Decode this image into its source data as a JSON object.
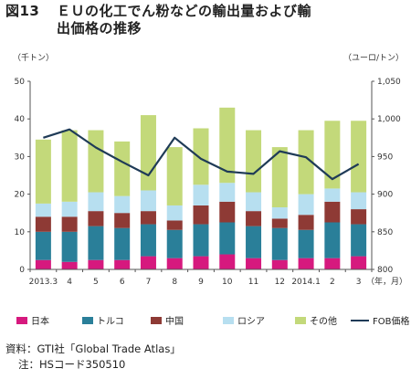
{
  "figure": {
    "number": "図13",
    "title_line1": "ＥＵの化工でん粉などの輸出量および輸",
    "title_line2": "出価格の推移"
  },
  "units": {
    "left": "（千トン）",
    "right": "（ユーロ/トン）",
    "xaxis": "（年，月）"
  },
  "notes": {
    "source": "資料：GTI社「Global Trade Atlas」",
    "note": "注：HSコード350510"
  },
  "colors": {
    "japan": "#d6197e",
    "turkey": "#2a7f99",
    "china": "#8e3a35",
    "russia": "#b7dff0",
    "other": "#c3d97a",
    "fob": "#1f3b57"
  },
  "chart_data": {
    "type": "bar",
    "stacked": true,
    "categories": [
      "2013.3",
      "4",
      "5",
      "6",
      "7",
      "8",
      "9",
      "10",
      "11",
      "12",
      "2014.1",
      "2",
      "3"
    ],
    "series": [
      {
        "name": "日本",
        "key": "japan",
        "values": [
          2.5,
          2.0,
          2.5,
          2.5,
          3.5,
          3.0,
          3.5,
          4.0,
          3.0,
          2.5,
          3.0,
          3.0,
          3.5
        ]
      },
      {
        "name": "トルコ",
        "key": "turkey",
        "values": [
          7.5,
          8.0,
          9.0,
          8.5,
          8.5,
          7.5,
          8.5,
          8.5,
          8.5,
          8.5,
          7.5,
          9.5,
          8.5
        ]
      },
      {
        "name": "中国",
        "key": "china",
        "values": [
          4.0,
          4.0,
          4.0,
          4.0,
          3.5,
          2.5,
          5.0,
          5.5,
          4.0,
          2.5,
          4.0,
          5.5,
          4.0
        ]
      },
      {
        "name": "ロシア",
        "key": "russia",
        "values": [
          3.5,
          4.0,
          5.0,
          4.5,
          5.5,
          4.0,
          5.5,
          5.0,
          5.0,
          3.0,
          5.5,
          3.5,
          4.5
        ]
      },
      {
        "name": "その他",
        "key": "other",
        "values": [
          17.0,
          19.0,
          16.5,
          14.5,
          20.0,
          15.5,
          15.0,
          20.0,
          16.5,
          16.0,
          17.0,
          18.0,
          19.0
        ]
      }
    ],
    "line": {
      "name": "FOB価格",
      "key": "fob",
      "axis": "right",
      "values": [
        975,
        986,
        962,
        943,
        925,
        975,
        947,
        930,
        927,
        957,
        949,
        920,
        940
      ]
    },
    "ylim_left": [
      0,
      50
    ],
    "yticks_left": [
      0,
      10,
      20,
      30,
      40,
      50
    ],
    "ylim_right": [
      800,
      1050
    ],
    "yticks_right_labels": [
      "800",
      "850",
      "900",
      "950",
      "1,000",
      "1,050"
    ],
    "yticks_right": [
      800,
      850,
      900,
      950,
      1000,
      1050
    ],
    "grid": false,
    "legend_position": "bottom"
  }
}
